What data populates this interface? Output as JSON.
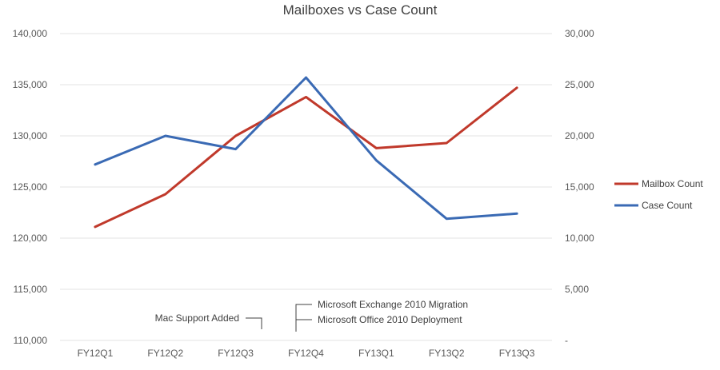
{
  "chart_data": {
    "type": "line",
    "title": "Mailboxes vs Case Count",
    "categories": [
      "FY12Q1",
      "FY12Q2",
      "FY12Q3",
      "FY12Q4",
      "FY13Q1",
      "FY13Q2",
      "FY13Q3"
    ],
    "y_left": {
      "range": [
        110000,
        140000
      ],
      "ticks": [
        110000,
        115000,
        120000,
        125000,
        130000,
        135000,
        140000
      ],
      "tick_labels": [
        "110,000",
        "115,000",
        "120,000",
        "125,000",
        "130,000",
        "135,000",
        "140,000"
      ]
    },
    "y_right": {
      "range": [
        0,
        30000
      ],
      "ticks": [
        0,
        5000,
        10000,
        15000,
        20000,
        25000,
        30000
      ],
      "tick_labels": [
        "-",
        "5,000",
        "10,000",
        "15,000",
        "20,000",
        "25,000",
        "30,000"
      ]
    },
    "series": [
      {
        "name": "Mailbox Count",
        "axis": "left",
        "color": "#c0392b",
        "values": [
          121100,
          124300,
          130000,
          133800,
          128800,
          129300,
          134700
        ]
      },
      {
        "name": "Case Count",
        "axis": "right",
        "color": "#3a6ab4",
        "values": [
          17200,
          20000,
          18700,
          25700,
          17600,
          11900,
          12400
        ]
      }
    ],
    "annotations": [
      {
        "text": "Mac Support Added",
        "category": "FY12Q3"
      },
      {
        "text": "Microsoft Exchange 2010 Migration",
        "category": "FY12Q4"
      },
      {
        "text": "Microsoft Office 2010 Deployment",
        "category": "FY12Q4"
      }
    ],
    "grid": true,
    "legend_position": "right"
  }
}
